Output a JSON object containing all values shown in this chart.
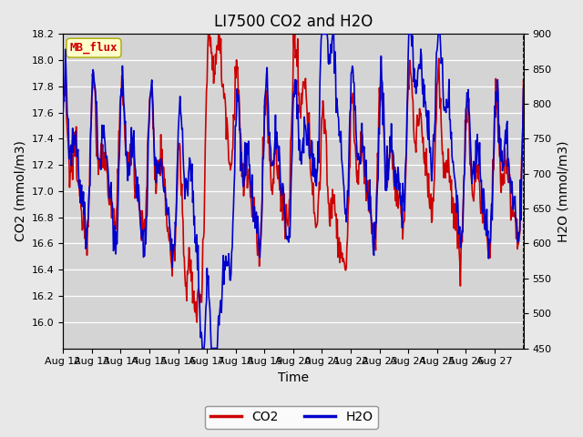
{
  "title": "LI7500 CO2 and H2O",
  "xlabel": "Time",
  "ylabel_left": "CO2 (mmol/m3)",
  "ylabel_right": "H2O (mmol/m3)",
  "co2_ylim": [
    15.8,
    18.2
  ],
  "h2o_ylim": [
    450,
    900
  ],
  "co2_yticks": [
    16.0,
    16.2,
    16.4,
    16.6,
    16.8,
    17.0,
    17.2,
    17.4,
    17.6,
    17.8,
    18.0,
    18.2
  ],
  "h2o_yticks": [
    450,
    500,
    550,
    600,
    650,
    700,
    750,
    800,
    850,
    900
  ],
  "xtick_labels": [
    "Aug 12",
    "Aug 13",
    "Aug 14",
    "Aug 15",
    "Aug 16",
    "Aug 17",
    "Aug 18",
    "Aug 19",
    "Aug 20",
    "Aug 21",
    "Aug 22",
    "Aug 23",
    "Aug 24",
    "Aug 25",
    "Aug 26",
    "Aug 27"
  ],
  "co2_color": "#cc0000",
  "h2o_color": "#0000cc",
  "line_width": 1.2,
  "bg_color": "#e8e8e8",
  "plot_bg_color": "#d4d4d4",
  "grid_color": "#ffffff",
  "legend_label_co2": "CO2",
  "legend_label_h2o": "H2O",
  "watermark_text": "MB_flux",
  "watermark_color": "#cc0000",
  "watermark_bg": "#ffffcc",
  "title_fontsize": 12,
  "axis_fontsize": 10,
  "tick_fontsize": 8
}
